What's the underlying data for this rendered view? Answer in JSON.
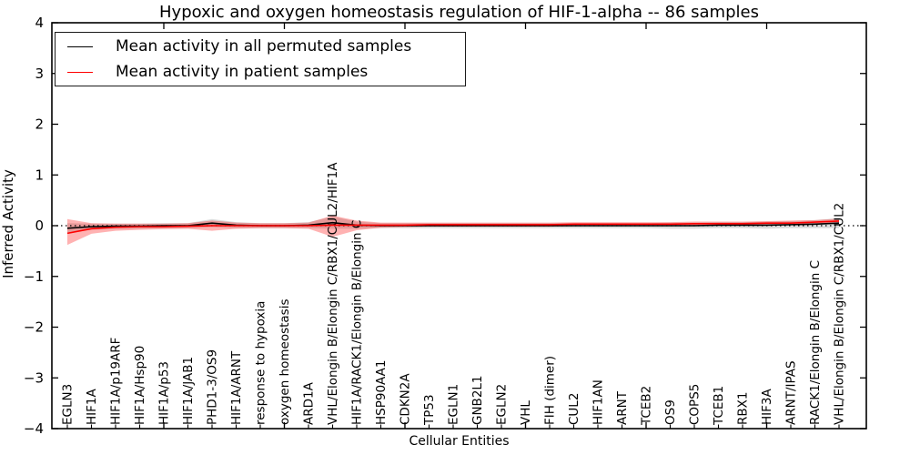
{
  "chart_data": {
    "type": "line",
    "title": "Hypoxic and oxygen homeostasis regulation of HIF-1-alpha -- 86 samples",
    "xlabel": "Cellular Entities",
    "ylabel": "Inferred Activity",
    "ylim": [
      -4,
      4
    ],
    "yticks": [
      4,
      3,
      2,
      1,
      0,
      -1,
      -2,
      -3,
      -4
    ],
    "ytick_labels": [
      "4",
      "3",
      "2",
      "1",
      "0",
      "−1",
      "−2",
      "−3",
      "−4"
    ],
    "grid": false,
    "legend_position": "upper left",
    "zero_line": {
      "value": 0,
      "style": "dotted",
      "color": "#000000"
    },
    "categories": [
      "EGLN3",
      "HIF1A",
      "HIF1A/p19ARF",
      "HIF1A/Hsp90",
      "HIF1A/p53",
      "HIF1A/JAB1",
      "PHD1-3/OS9",
      "HIF1A/ARNT",
      "response to hypoxia",
      "oxygen homeostasis",
      "ARD1A",
      "VHL/Elongin B/Elongin C/RBX1/CUL2/HIF1A",
      "HIF1A/RACK1/Elongin B/Elongin C",
      "HSP90AA1",
      "CDKN2A",
      "TP53",
      "EGLN1",
      "GNB2L1",
      "EGLN2",
      "VHL",
      "FIH (dimer)",
      "CUL2",
      "HIF1AN",
      "ARNT",
      "TCEB2",
      "OS9",
      "COPS5",
      "TCEB1",
      "RBX1",
      "HIF3A",
      "ARNT/IPAS",
      "RACK1/Elongin B/Elongin C",
      "VHL/Elongin B/Elongin C/RBX1/CUL2"
    ],
    "series": [
      {
        "name": "Mean activity in all permuted samples",
        "color": "#000000",
        "values": [
          -0.05,
          -0.02,
          -0.01,
          -0.01,
          0,
          0,
          0.05,
          0.01,
          0,
          0,
          0.01,
          0.06,
          0.01,
          0,
          0,
          0,
          0,
          0,
          0,
          0,
          0,
          0,
          0,
          0,
          0,
          0,
          0,
          0.01,
          0.01,
          0.01,
          0.02,
          0.03,
          0.05
        ]
      },
      {
        "name": "Mean activity in patient samples",
        "color": "#ff0000",
        "values": [
          -0.15,
          -0.06,
          -0.03,
          -0.02,
          -0.02,
          -0.01,
          0,
          0,
          0,
          0,
          0,
          0.01,
          0.01,
          0.01,
          0.01,
          0.02,
          0.02,
          0.02,
          0.02,
          0.02,
          0.02,
          0.03,
          0.03,
          0.03,
          0.03,
          0.03,
          0.04,
          0.04,
          0.04,
          0.05,
          0.05,
          0.07,
          0.09
        ]
      }
    ],
    "bands": [
      {
        "name": "permuted-samples-std-band",
        "color": "#000000",
        "opacity": 0.14,
        "lower": [
          -0.15,
          -0.08,
          -0.06,
          -0.06,
          -0.05,
          -0.05,
          -0.03,
          -0.05,
          -0.05,
          -0.05,
          -0.05,
          -0.06,
          -0.06,
          -0.05,
          -0.05,
          -0.05,
          -0.05,
          -0.05,
          -0.05,
          -0.05,
          -0.05,
          -0.05,
          -0.05,
          -0.05,
          -0.05,
          -0.06,
          -0.06,
          -0.05,
          -0.05,
          -0.06,
          -0.05,
          -0.05,
          -0.05
        ],
        "upper": [
          0.05,
          0.04,
          0.04,
          0.04,
          0.05,
          0.05,
          0.13,
          0.07,
          0.05,
          0.05,
          0.07,
          0.18,
          0.08,
          0.05,
          0.05,
          0.05,
          0.05,
          0.05,
          0.05,
          0.05,
          0.05,
          0.05,
          0.05,
          0.05,
          0.05,
          0.06,
          0.06,
          0.07,
          0.07,
          0.08,
          0.09,
          0.11,
          0.15
        ]
      },
      {
        "name": "patient-samples-std-band",
        "color": "#ff0000",
        "opacity": 0.3,
        "lower": [
          -0.38,
          -0.16,
          -0.1,
          -0.08,
          -0.07,
          -0.06,
          -0.1,
          -0.06,
          -0.05,
          -0.05,
          -0.06,
          -0.22,
          -0.09,
          -0.04,
          -0.03,
          -0.02,
          -0.02,
          -0.02,
          -0.02,
          -0.02,
          -0.02,
          -0.01,
          -0.01,
          -0.01,
          -0.01,
          -0.01,
          0,
          0,
          0,
          0.01,
          0.01,
          0.02,
          0.04
        ],
        "upper": [
          0.13,
          0.05,
          0.04,
          0.04,
          0.04,
          0.05,
          0.1,
          0.06,
          0.05,
          0.05,
          0.06,
          0.2,
          0.1,
          0.06,
          0.06,
          0.06,
          0.06,
          0.06,
          0.06,
          0.06,
          0.06,
          0.07,
          0.07,
          0.07,
          0.07,
          0.07,
          0.08,
          0.08,
          0.08,
          0.09,
          0.1,
          0.11,
          0.14
        ]
      }
    ]
  },
  "legend": {
    "entries": [
      {
        "label": "Mean activity in all permuted samples",
        "color": "#000000"
      },
      {
        "label": "Mean activity in patient samples",
        "color": "#ff0000"
      }
    ]
  }
}
